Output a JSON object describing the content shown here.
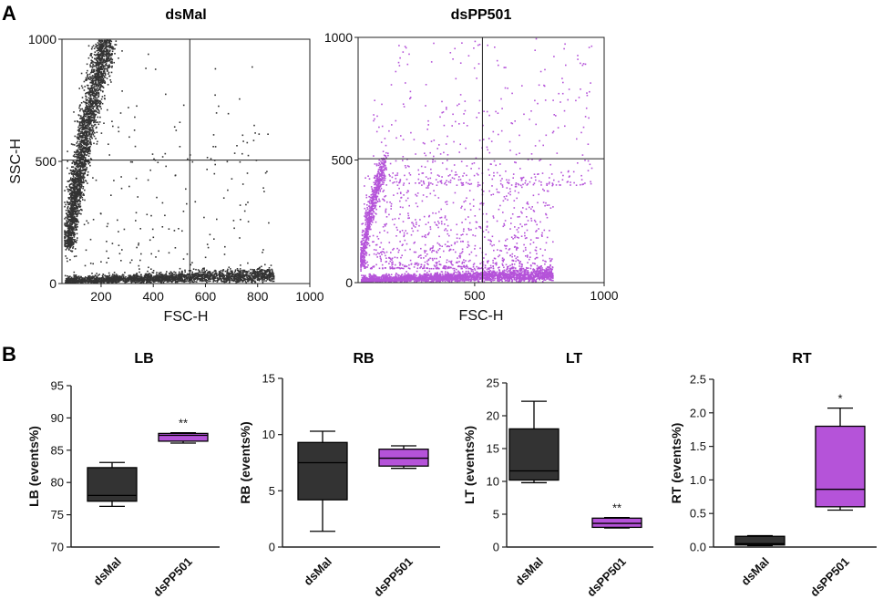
{
  "colors": {
    "dark": "#333333",
    "purple": "#b553d9",
    "axis": "#222222",
    "text": "#111111"
  },
  "panels": {
    "a": "A",
    "b": "B"
  },
  "chart_data": [
    {
      "id": "scatter-dsmal",
      "type": "scatter",
      "title": "dsMal",
      "xlabel": "FSC-H",
      "ylabel": "SSC-H",
      "xlim": [
        50,
        1000
      ],
      "ylim": [
        0,
        1000
      ],
      "xticks": [
        "200",
        "400",
        "600",
        "800",
        "1000"
      ],
      "yticks": [
        "0",
        "500",
        "1000"
      ],
      "xtick_values": [
        200,
        400,
        600,
        800,
        1000
      ],
      "ytick_values": [
        0,
        500,
        1000
      ],
      "gate": {
        "x": 540,
        "y": 505
      },
      "color": "#333333",
      "populations": [
        {
          "kind": "curve",
          "n": 2600,
          "x_range": [
            75,
            215
          ],
          "y_range": [
            150,
            1000
          ],
          "spread": 0.13
        },
        {
          "kind": "floor",
          "n": 2100,
          "x_range": [
            60,
            860
          ],
          "y_range": [
            5,
            95
          ]
        },
        {
          "kind": "uniform",
          "n": 220,
          "x_range": [
            60,
            860
          ],
          "y_range": [
            30,
            700
          ]
        },
        {
          "kind": "uniform",
          "n": 40,
          "x_range": [
            60,
            860
          ],
          "y_range": [
            500,
            1000
          ]
        }
      ]
    },
    {
      "id": "scatter-dspp501",
      "type": "scatter",
      "title": "dsPP501",
      "xlabel": "FSC-H",
      "ylabel": "",
      "xlim": [
        50,
        1000
      ],
      "ylim": [
        0,
        1000
      ],
      "xticks": [
        "500",
        "1000"
      ],
      "yticks": [
        "0",
        "500",
        "1000"
      ],
      "xtick_values": [
        500,
        1000
      ],
      "ytick_values": [
        0,
        500,
        1000
      ],
      "gate": {
        "x": 530,
        "y": 505
      },
      "color": "#b553d9",
      "populations": [
        {
          "kind": "curve",
          "n": 650,
          "x_range": [
            60,
            150
          ],
          "y_range": [
            70,
            510
          ],
          "spread": 0.1
        },
        {
          "kind": "floor",
          "n": 2300,
          "x_range": [
            60,
            800
          ],
          "y_range": [
            5,
            90
          ]
        },
        {
          "kind": "uniform",
          "n": 900,
          "x_range": [
            60,
            800
          ],
          "y_range": [
            60,
            450
          ]
        },
        {
          "kind": "uniform",
          "n": 380,
          "x_range": [
            100,
            950
          ],
          "y_range": [
            400,
            1000
          ]
        }
      ]
    },
    {
      "id": "box-lb",
      "type": "box",
      "title": "LB",
      "ylabel": "LB (events%)",
      "ylim": [
        70,
        95
      ],
      "yticks": [
        "70",
        "75",
        "80",
        "85",
        "90",
        "95"
      ],
      "ytick_values": [
        70,
        75,
        80,
        85,
        90,
        95
      ],
      "categories": [
        "dsMal",
        "dsPP501"
      ],
      "boxes": [
        {
          "min": 76.3,
          "q1": 77.1,
          "median": 78.0,
          "q3": 82.3,
          "max": 83.1,
          "color": "#333333",
          "sig": ""
        },
        {
          "min": 86.1,
          "q1": 86.4,
          "median": 87.3,
          "q3": 87.6,
          "max": 87.7,
          "color": "#b553d9",
          "sig": "**"
        }
      ]
    },
    {
      "id": "box-rb",
      "type": "box",
      "title": "RB",
      "ylabel": "RB (events%)",
      "ylim": [
        0,
        15
      ],
      "yticks": [
        "0",
        "5",
        "10",
        "15"
      ],
      "ytick_values": [
        0,
        5,
        10,
        15
      ],
      "categories": [
        "dsMal",
        "dsPP501"
      ],
      "boxes": [
        {
          "min": 1.4,
          "q1": 4.2,
          "median": 7.5,
          "q3": 9.3,
          "max": 10.3,
          "color": "#333333",
          "sig": ""
        },
        {
          "min": 7.0,
          "q1": 7.2,
          "median": 7.9,
          "q3": 8.7,
          "max": 9.0,
          "color": "#b553d9",
          "sig": ""
        }
      ]
    },
    {
      "id": "box-lt",
      "type": "box",
      "title": "LT",
      "ylabel": "LT (events%)",
      "ylim": [
        0,
        25
      ],
      "yticks": [
        "0",
        "5",
        "10",
        "15",
        "20",
        "25"
      ],
      "ytick_values": [
        0,
        5,
        10,
        15,
        20,
        25
      ],
      "categories": [
        "dsMal",
        "dsPP501"
      ],
      "boxes": [
        {
          "min": 9.8,
          "q1": 10.2,
          "median": 11.6,
          "q3": 18.0,
          "max": 22.2,
          "color": "#333333",
          "sig": ""
        },
        {
          "min": 2.9,
          "q1": 3.0,
          "median": 3.6,
          "q3": 4.4,
          "max": 4.5,
          "color": "#b553d9",
          "sig": "**"
        }
      ]
    },
    {
      "id": "box-rt",
      "type": "box",
      "title": "RT",
      "ylabel": "RT (events%)",
      "ylim": [
        0,
        2.5
      ],
      "yticks": [
        "0.0",
        "0.5",
        "1.0",
        "1.5",
        "2.0",
        "2.5"
      ],
      "ytick_values": [
        0,
        0.5,
        1.0,
        1.5,
        2.0,
        2.5
      ],
      "categories": [
        "dsMal",
        "dsPP501"
      ],
      "boxes": [
        {
          "min": 0.02,
          "q1": 0.03,
          "median": 0.05,
          "q3": 0.16,
          "max": 0.17,
          "color": "#333333",
          "sig": ""
        },
        {
          "min": 0.55,
          "q1": 0.6,
          "median": 0.86,
          "q3": 1.8,
          "max": 2.07,
          "color": "#b553d9",
          "sig": "*"
        }
      ]
    }
  ]
}
